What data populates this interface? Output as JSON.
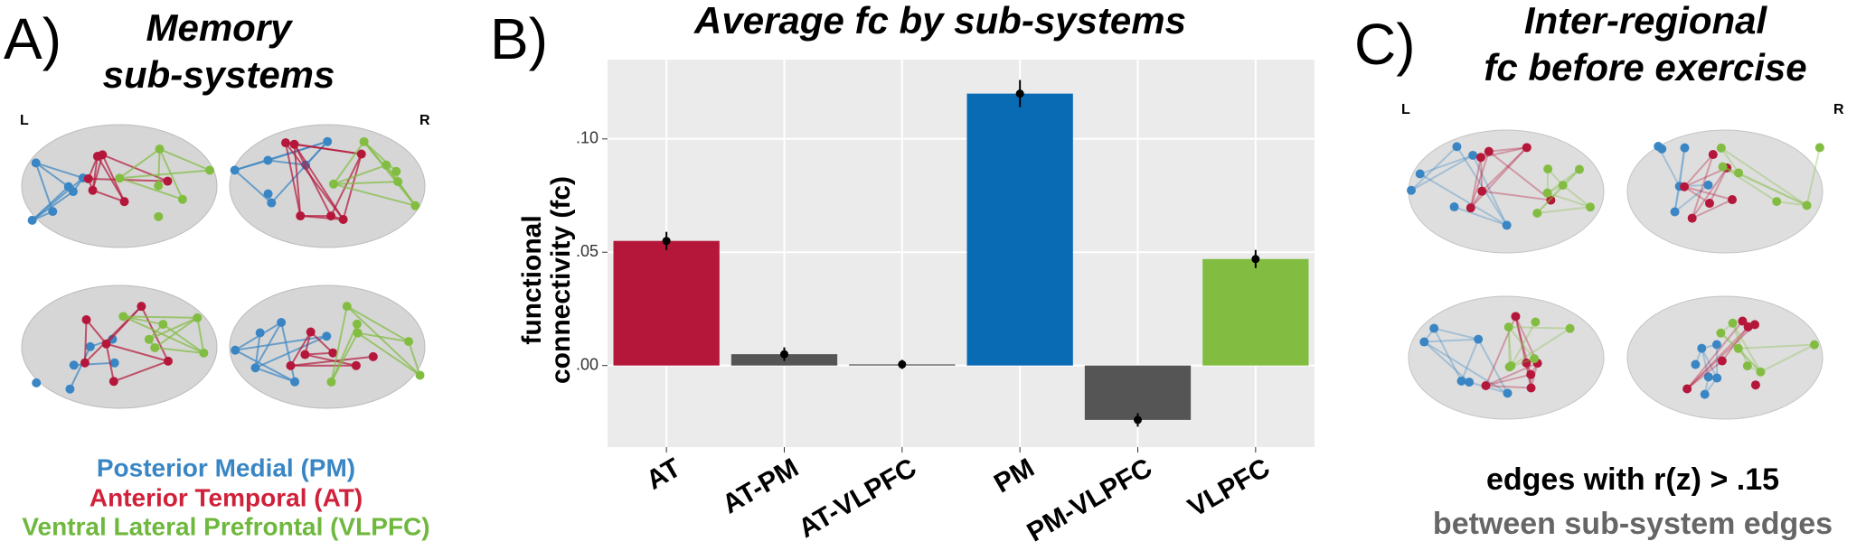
{
  "panels": {
    "a": {
      "letter": "A)",
      "title": [
        "Memory",
        "sub-systems"
      ],
      "left": "L",
      "right": "R",
      "legend": [
        "Posterior Medial (PM)",
        "Anterior Temporal (AT)",
        "Ventral Lateral Prefrontal (VLPFC)"
      ]
    },
    "b": {
      "letter": "B)"
    },
    "c": {
      "letter": "C)",
      "title": [
        "Inter-regional",
        "fc before exercise"
      ],
      "left": "L",
      "right": "R",
      "notes": [
        "edges with r(z) > .15",
        "between sub-system edges"
      ]
    }
  },
  "chart_data": {
    "type": "bar",
    "title": "Average fc by sub-systems",
    "y_label": [
      "functional",
      "connectivity (fc)"
    ],
    "categories": [
      "AT",
      "AT-PM",
      "AT-VLPFC",
      "PM",
      "PM-VLPFC",
      "VLPFC"
    ],
    "values": [
      0.055,
      0.005,
      0.0005,
      0.12,
      -0.024,
      0.047
    ],
    "errors": [
      0.004,
      0.003,
      0.002,
      0.006,
      0.003,
      0.004
    ],
    "colors": [
      "#b5173a",
      "#555555",
      "#555555",
      "#0a6bb5",
      "#555555",
      "#82bd42"
    ],
    "ylim": [
      -0.036,
      0.135
    ],
    "yticks": [
      {
        "value": 0,
        "label": ".00"
      },
      {
        "value": 0.05,
        "label": ".05"
      },
      {
        "value": 0.1,
        "label": ".10"
      }
    ],
    "grid": true
  }
}
